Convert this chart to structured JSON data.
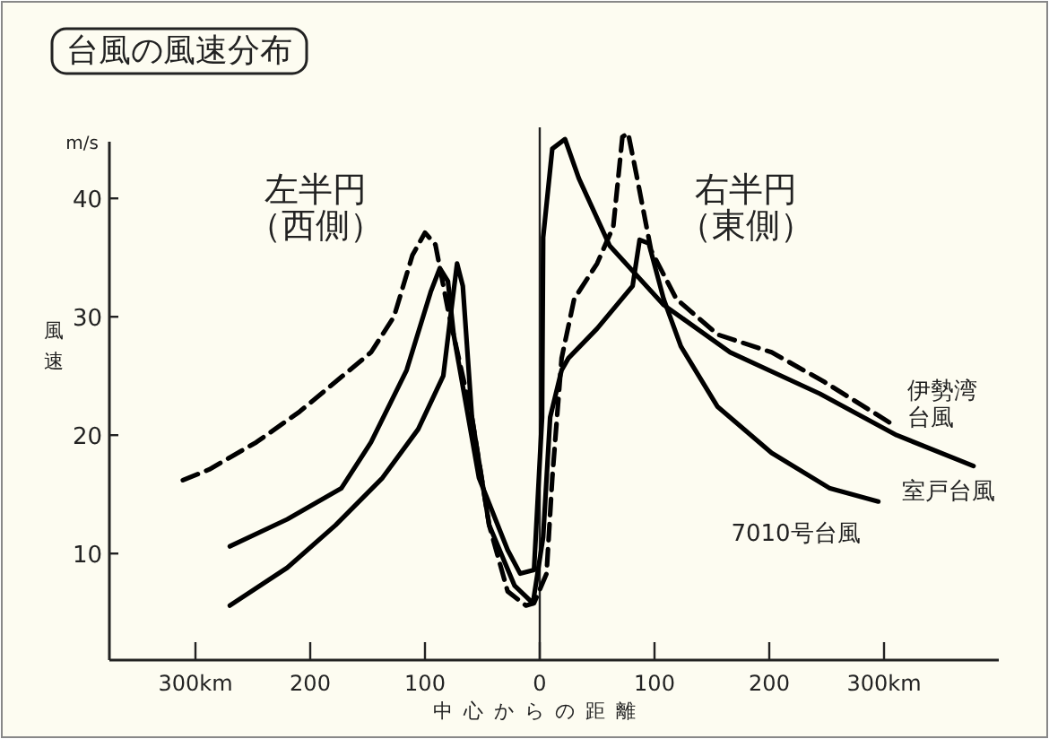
{
  "chart_data": {
    "type": "line",
    "title": "台風の風速分布",
    "xlabel": "中心からの距離",
    "ylabel": "風速",
    "annotations": [
      "m/s",
      "左半円",
      "（西側）",
      "右半円",
      "（東側）"
    ],
    "xlim": [
      -375,
      400
    ],
    "ylim": [
      1,
      46
    ],
    "xticks": [
      {
        "value": -300,
        "label": "300km"
      },
      {
        "value": -200,
        "label": "200"
      },
      {
        "value": -100,
        "label": "100"
      },
      0,
      100,
      200,
      {
        "value": 300,
        "label": "300km"
      }
    ],
    "yticks": [
      10,
      20,
      30,
      40
    ],
    "ref_lines": [
      {
        "axis": "x",
        "value": 0
      }
    ],
    "grid": false,
    "series": [
      {
        "name": "伊勢湾台風",
        "color": "#000000",
        "line_style": "dashed",
        "x": [
          -311,
          -288,
          -247,
          -209,
          -178,
          -147,
          -127,
          -111,
          -100,
          -91,
          -80,
          -59,
          -44,
          -28,
          -12,
          -5,
          6,
          11,
          19,
          30,
          50,
          64,
          72,
          77,
          84,
          97,
          119,
          155,
          202,
          248,
          311
        ],
        "values": [
          16.2,
          17.1,
          19.4,
          22,
          24.5,
          27,
          30,
          35.2,
          37.1,
          36.1,
          30.6,
          21.5,
          12.4,
          6.8,
          5.6,
          5.8,
          8.3,
          16.4,
          26.5,
          31.5,
          34.5,
          37.6,
          45.2,
          45.5,
          42.1,
          35.6,
          31.5,
          28.5,
          27,
          24.5,
          20.7
        ]
      },
      {
        "name": "室戸台風",
        "color": "#000000",
        "line_style": "solid",
        "x": [
          -270,
          -220,
          -173,
          -147,
          -116,
          -95,
          -87,
          -80,
          -75,
          -53,
          -28,
          -17,
          -5,
          2,
          3,
          11,
          22,
          34,
          61,
          108,
          166,
          244,
          311,
          378
        ],
        "values": [
          10.6,
          12.9,
          15.5,
          19.4,
          25.5,
          32.1,
          34.1,
          33,
          28.5,
          16.4,
          10.3,
          8.3,
          8.6,
          21.5,
          36.7,
          44.2,
          45,
          41.7,
          36,
          31,
          27,
          23.5,
          20,
          17.4
        ]
      },
      {
        "name": "7010号台風",
        "color": "#000000",
        "line_style": "solid",
        "x": [
          -270,
          -220,
          -178,
          -137,
          -106,
          -84,
          -77,
          -72,
          -67,
          -59,
          -44,
          -22,
          -6,
          3,
          9,
          19,
          25,
          50,
          81,
          87,
          95,
          108,
          123,
          155,
          202,
          253,
          295
        ],
        "values": [
          5.6,
          8.8,
          12.4,
          16.4,
          20.5,
          25,
          30.6,
          34.5,
          32.6,
          21.5,
          12.4,
          7.3,
          5.8,
          11.4,
          21.5,
          25.5,
          26.5,
          29,
          32.6,
          36.5,
          36.2,
          31.5,
          27.5,
          22.4,
          18.5,
          15.5,
          14.4
        ]
      }
    ]
  }
}
